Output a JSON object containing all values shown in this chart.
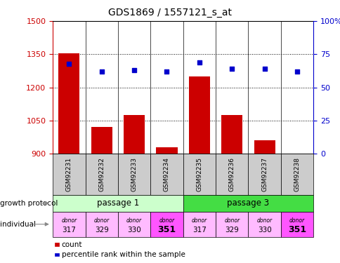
{
  "title": "GDS1869 / 1557121_s_at",
  "samples": [
    "GSM92231",
    "GSM92232",
    "GSM92233",
    "GSM92234",
    "GSM92235",
    "GSM92236",
    "GSM92237",
    "GSM92238"
  ],
  "count_values": [
    1355,
    1020,
    1075,
    930,
    1250,
    1075,
    960,
    900
  ],
  "percentile_values": [
    68,
    62,
    63,
    62,
    69,
    64,
    64,
    62
  ],
  "ylim_left": [
    900,
    1500
  ],
  "ylim_right": [
    0,
    100
  ],
  "yticks_left": [
    900,
    1050,
    1200,
    1350,
    1500
  ],
  "yticks_right": [
    0,
    25,
    50,
    75,
    100
  ],
  "bar_color": "#cc0000",
  "dot_color": "#0000cc",
  "passage1_color": "#ccffcc",
  "passage3_color": "#44dd44",
  "individual_color_light": "#ffbbff",
  "individual_color_bold": "#ff55ff",
  "tick_label_color_left": "#cc0000",
  "tick_label_color_right": "#0000cc",
  "xlabel_growth": "growth protocol",
  "xlabel_individual": "individual",
  "donors": [
    "317",
    "329",
    "330",
    "351",
    "317",
    "329",
    "330",
    "351"
  ],
  "individual_bold": [
    false,
    false,
    false,
    true,
    false,
    false,
    false,
    true
  ],
  "gray_box_color": "#cccccc"
}
